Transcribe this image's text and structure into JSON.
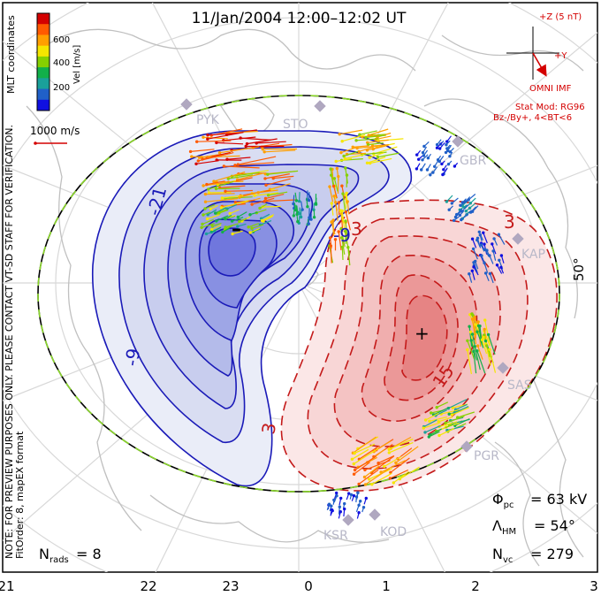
{
  "title": "11/Jan/2004 12:00–12:02 UT",
  "colorbar": {
    "ticks": [
      "600",
      "400",
      "200"
    ],
    "label": "Vel [m/s]",
    "colors": [
      "#d40000",
      "#ff5a00",
      "#ff9f00",
      "#f5e600",
      "#86d000",
      "#12b04a",
      "#1aa09a",
      "#2060c8",
      "#1010e0"
    ]
  },
  "coords_label": "MLT coordinates",
  "velocity_ref": {
    "label": "1000 m/s"
  },
  "side_note": "NOTE: FOR PREVIEW PURPOSES ONLY. PLEASE CONTACT VT-SD STAFF FOR VERIFICATION.",
  "fit_order": "FitOrder: 8, mapEX format",
  "imf": {
    "bz_label": "+Z (5 nT)",
    "by_label": "+Y",
    "source": "OMNI IMF",
    "model_line1": "Stat Mod: RG96",
    "model_line2": "Bz-/By+, 4<BT<6",
    "color": "#d40000"
  },
  "latitude_label": "50°",
  "stats": {
    "phi_pc": "= 63 kV",
    "lambda_hm": "= 54°",
    "n_vc": "= 279",
    "n_rads": "= 8"
  },
  "mlt_ticks": [
    "21",
    "22",
    "23",
    "0",
    "1",
    "2",
    "3"
  ],
  "stations": [
    "STO",
    "GBR",
    "KAP",
    "SAS",
    "PGR",
    "KOD",
    "KSR",
    "PYK"
  ],
  "contour_labels": {
    "neg": [
      "-21",
      "-9",
      "-9"
    ],
    "pos": [
      "3",
      "15",
      "3",
      "3"
    ]
  },
  "markers": {
    "min": "–",
    "max": "+"
  }
}
